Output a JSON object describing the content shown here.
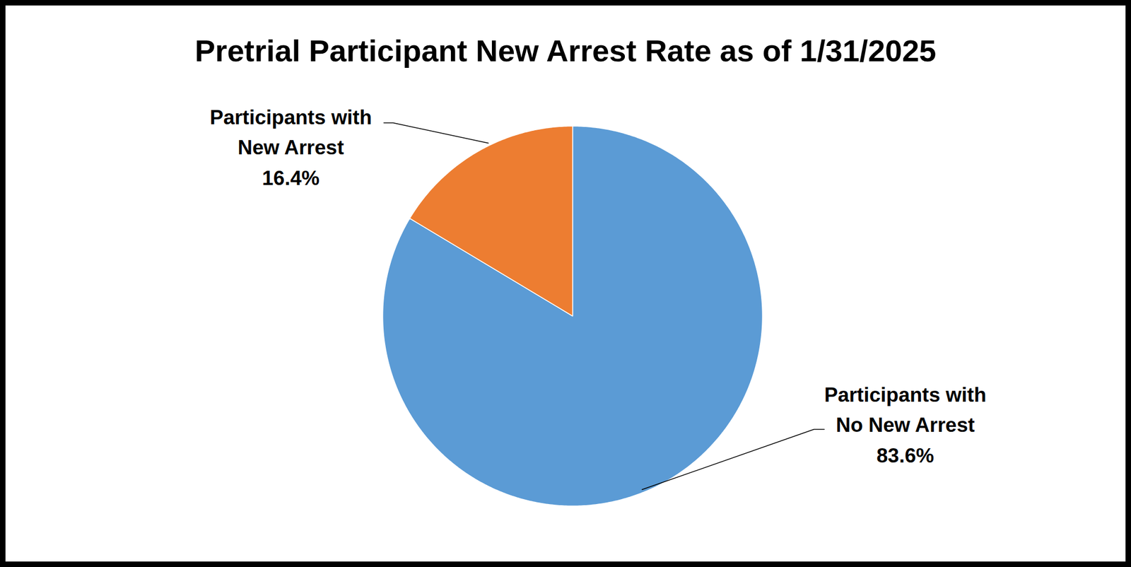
{
  "chart_data": {
    "type": "pie",
    "title": "Pretrial Participant New Arrest Rate as of 1/31/2025",
    "categories": [
      "Participants with No New Arrest",
      "Participants with New Arrest"
    ],
    "values": [
      83.6,
      16.4
    ],
    "value_labels": [
      "83.6%",
      "16.4%"
    ],
    "colors": [
      "#5b9bd5",
      "#ed7d31"
    ],
    "data_labels": true
  }
}
